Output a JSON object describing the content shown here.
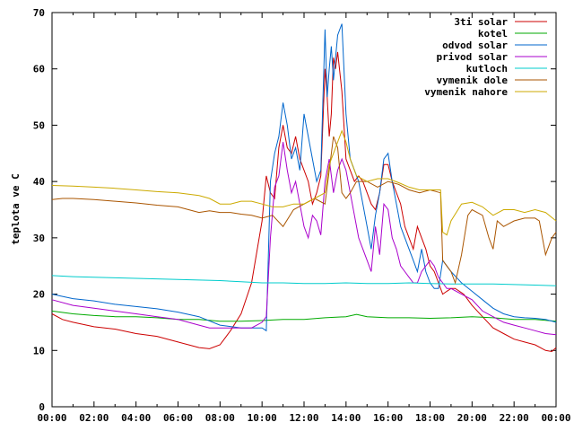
{
  "chart_data": {
    "type": "line",
    "title": "",
    "xlabel": "",
    "ylabel": "teplota ve C",
    "xlim": [
      "00:00",
      "24:00"
    ],
    "ylim": [
      0,
      70
    ],
    "x_ticks": [
      "00:00",
      "02:00",
      "04:00",
      "06:00",
      "08:00",
      "10:00",
      "12:00",
      "14:00",
      "16:00",
      "18:00",
      "20:00",
      "22:00",
      "00:00"
    ],
    "y_ticks": [
      0,
      10,
      20,
      30,
      40,
      50,
      60,
      70
    ],
    "grid": false,
    "legend_position": "top-right",
    "series": [
      {
        "name": "3ti solar",
        "color": "#cc0000",
        "x": [
          0,
          0.5,
          1,
          2,
          3,
          4,
          5,
          6,
          6.5,
          7,
          7.5,
          8,
          8.5,
          9,
          9.5,
          10,
          10.2,
          10.4,
          10.6,
          10.8,
          11,
          11.2,
          11.4,
          11.6,
          11.8,
          12,
          12.2,
          12.4,
          12.6,
          12.8,
          13,
          13.1,
          13.2,
          13.3,
          13.4,
          13.5,
          13.6,
          13.8,
          14,
          14.2,
          14.4,
          14.6,
          14.8,
          15,
          15.2,
          15.4,
          15.6,
          15.8,
          16,
          16.2,
          16.4,
          16.6,
          16.8,
          17,
          17.2,
          17.4,
          17.6,
          17.8,
          18,
          18.2,
          18.4,
          18.6,
          18.8,
          19,
          19.2,
          19.4,
          19.6,
          19.8,
          20,
          20.5,
          21,
          21.5,
          22,
          22.5,
          23,
          23.5,
          23.8,
          24
        ],
        "y": [
          16.5,
          15.5,
          15,
          14.2,
          13.8,
          13,
          12.5,
          11.5,
          11,
          10.5,
          10.3,
          11,
          13.5,
          16.5,
          22,
          33,
          41,
          38,
          37,
          46,
          50,
          46,
          45,
          48,
          44,
          42,
          40,
          36,
          38,
          41,
          60,
          55,
          48,
          52,
          62,
          60,
          63,
          56,
          44,
          42,
          40,
          41,
          40,
          38,
          36,
          35,
          38,
          43,
          43,
          40,
          38,
          36,
          32,
          30,
          28,
          32,
          30,
          28,
          25,
          24,
          22,
          20,
          20.5,
          21,
          21,
          20.5,
          20,
          19,
          18,
          16,
          14,
          13,
          12,
          11.5,
          11,
          10,
          9.8,
          10.5
        ]
      },
      {
        "name": "kotel",
        "color": "#00aa00",
        "x": [
          0,
          1,
          2,
          3,
          4,
          5,
          6,
          7,
          8,
          9,
          10,
          11,
          12,
          13,
          14,
          14.5,
          15,
          16,
          17,
          18,
          19,
          20,
          21,
          22,
          23,
          24
        ],
        "y": [
          17,
          16.5,
          16.2,
          16,
          16,
          15.8,
          15.5,
          15.5,
          15.2,
          15.2,
          15.3,
          15.5,
          15.5,
          15.8,
          16,
          16.4,
          16,
          15.8,
          15.8,
          15.7,
          15.8,
          16,
          15.8,
          15.5,
          15.5,
          15.2
        ]
      },
      {
        "name": "odvod solar",
        "color": "#0066cc",
        "x": [
          0,
          1,
          2,
          3,
          4,
          5,
          6,
          7,
          8,
          9,
          9.5,
          10,
          10.2,
          10.4,
          10.6,
          10.8,
          11,
          11.2,
          11.4,
          11.6,
          11.8,
          12,
          12.2,
          12.4,
          12.6,
          12.8,
          13,
          13.1,
          13.2,
          13.3,
          13.4,
          13.6,
          13.8,
          14,
          14.2,
          14.4,
          14.6,
          14.8,
          15,
          15.2,
          15.4,
          15.6,
          15.8,
          16,
          16.2,
          16.4,
          16.6,
          16.8,
          17,
          17.2,
          17.4,
          17.6,
          17.8,
          18,
          18.2,
          18.4,
          18.6,
          18.8,
          19,
          19.5,
          20,
          20.5,
          21,
          21.5,
          22,
          22.5,
          23,
          23.5,
          24
        ],
        "y": [
          20,
          19.2,
          18.8,
          18.2,
          17.8,
          17.4,
          16.8,
          16,
          14.5,
          14,
          14,
          14,
          13.5,
          40,
          45,
          48,
          54,
          50,
          44,
          46,
          42,
          52,
          48,
          44,
          40,
          42,
          67,
          55,
          60,
          64,
          58,
          66,
          68,
          52,
          44,
          42,
          40,
          36,
          32,
          28,
          34,
          38,
          44,
          45,
          40,
          36,
          32,
          30,
          28,
          26,
          24,
          28,
          24,
          22,
          21,
          21,
          26,
          25,
          24,
          22,
          20.5,
          19,
          17.5,
          16.5,
          16,
          15.8,
          15.7,
          15.5,
          15
        ]
      },
      {
        "name": "privod solar",
        "color": "#aa00cc",
        "x": [
          0,
          1,
          2,
          3,
          4,
          5,
          6,
          7,
          7.5,
          8,
          8.5,
          9,
          9.5,
          10,
          10.2,
          10.4,
          10.6,
          10.8,
          11,
          11.2,
          11.4,
          11.6,
          11.8,
          12,
          12.2,
          12.4,
          12.6,
          12.8,
          13,
          13.2,
          13.4,
          13.6,
          13.8,
          14,
          14.2,
          14.4,
          14.6,
          14.8,
          15,
          15.2,
          15.4,
          15.6,
          15.8,
          16,
          16.2,
          16.4,
          16.6,
          16.8,
          17,
          17.2,
          17.4,
          17.6,
          17.8,
          18,
          18.2,
          18.4,
          18.6,
          18.8,
          19,
          19.5,
          20,
          20.5,
          21,
          21.5,
          22,
          22.5,
          23,
          23.5,
          24
        ],
        "y": [
          19,
          18,
          17.5,
          17,
          16.5,
          16,
          15.5,
          14.5,
          14,
          14,
          14,
          14,
          14,
          15,
          16,
          30,
          39,
          41,
          47,
          42,
          38,
          40,
          36,
          32,
          30,
          34,
          33,
          30.5,
          40,
          44,
          38,
          42,
          44,
          42,
          38,
          34,
          30,
          28,
          26,
          24,
          32,
          27,
          36,
          35,
          30,
          28,
          25,
          24,
          23,
          22,
          22,
          24,
          25,
          26,
          25,
          23,
          22,
          21,
          21,
          20,
          19,
          17,
          16,
          15,
          14.5,
          14,
          13.5,
          13,
          12.8
        ]
      },
      {
        "name": "kutloch",
        "color": "#00cccc",
        "x": [
          0,
          1,
          2,
          3,
          4,
          5,
          6,
          7,
          8,
          9,
          10,
          11,
          12,
          13,
          14,
          15,
          16,
          17,
          18,
          19,
          20,
          21,
          22,
          23,
          24
        ],
        "y": [
          23.3,
          23.1,
          23,
          22.9,
          22.8,
          22.7,
          22.6,
          22.5,
          22.4,
          22.2,
          22,
          22,
          21.9,
          21.9,
          22,
          21.9,
          21.9,
          22,
          21.9,
          21.8,
          21.8,
          21.8,
          21.7,
          21.6,
          21.5
        ]
      },
      {
        "name": "vymenik dole",
        "color": "#aa5500",
        "x": [
          0,
          0.5,
          1,
          2,
          3,
          4,
          5,
          6,
          6.5,
          7,
          7.5,
          8,
          8.5,
          9,
          9.5,
          10,
          10.5,
          11,
          11.5,
          12,
          12.5,
          13,
          13.2,
          13.4,
          13.6,
          13.8,
          14,
          14.2,
          14.5,
          15,
          15.5,
          16,
          16.5,
          17,
          17.5,
          18,
          18.5,
          18.6,
          18.8,
          19,
          19.2,
          19.5,
          19.8,
          20,
          20.5,
          20.8,
          21,
          21.2,
          21.5,
          22,
          22.5,
          23,
          23.2,
          23.5,
          23.8,
          24
        ],
        "y": [
          36.8,
          37,
          37,
          36.8,
          36.5,
          36.2,
          35.8,
          35.5,
          35,
          34.5,
          34.8,
          34.5,
          34.5,
          34.2,
          34,
          33.5,
          34,
          32,
          35,
          36,
          37,
          36,
          42,
          48,
          46,
          38,
          37,
          38,
          40,
          40,
          39,
          40,
          39.5,
          38.5,
          38,
          38.5,
          38,
          26,
          25,
          24,
          22,
          27,
          34,
          35,
          34,
          30,
          28,
          33,
          32,
          33,
          33.5,
          33.5,
          33,
          27,
          30,
          31
        ]
      },
      {
        "name": "vymenik nahore",
        "color": "#ccaa00",
        "x": [
          0,
          1,
          2,
          3,
          4,
          5,
          6,
          7,
          7.5,
          8,
          8.5,
          9,
          9.5,
          10,
          10.5,
          11,
          11.5,
          12,
          12.5,
          13,
          13.2,
          13.4,
          13.6,
          13.8,
          14,
          14.2,
          14.5,
          15,
          15.5,
          16,
          16.5,
          17,
          17.5,
          18,
          18.5,
          18.6,
          18.8,
          19,
          19.5,
          20,
          20.5,
          21,
          21.5,
          22,
          22.5,
          23,
          23.5,
          24
        ],
        "y": [
          39.3,
          39.2,
          39,
          38.8,
          38.5,
          38.2,
          38,
          37.5,
          37,
          36,
          36,
          36.5,
          36.5,
          36,
          35.5,
          35.5,
          36,
          36,
          37,
          38,
          43,
          45,
          47,
          49,
          47,
          44,
          41,
          40,
          40.5,
          40.5,
          39.8,
          39,
          38.5,
          38.5,
          38.5,
          31,
          30.5,
          33,
          36,
          36.3,
          35.5,
          34,
          35,
          35,
          34.5,
          35,
          34.5,
          33
        ]
      }
    ]
  }
}
